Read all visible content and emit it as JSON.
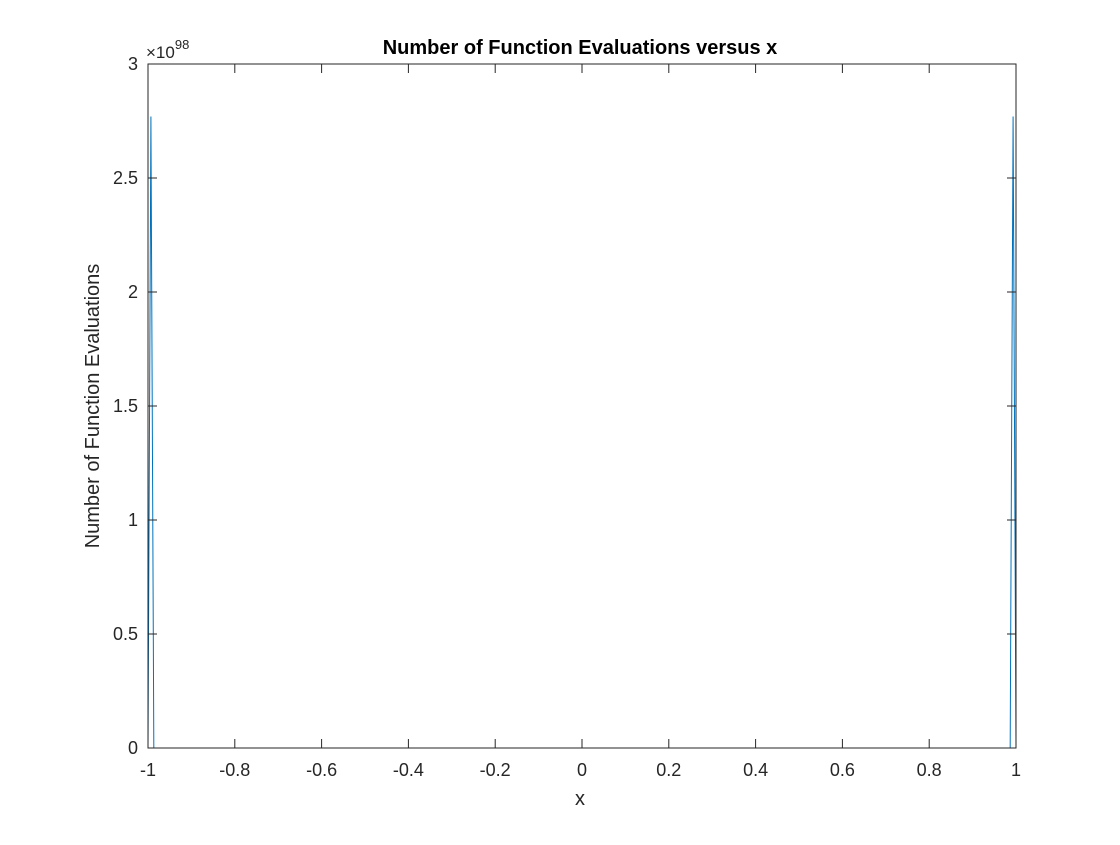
{
  "chart_data": {
    "type": "line",
    "title": "Number of Function Evaluations versus x",
    "xlabel": "x",
    "ylabel": "Number of Function Evaluations",
    "xlim": [
      -1,
      1
    ],
    "ylim": [
      0,
      3e+98
    ],
    "y_exponent_label": "×10",
    "y_exponent_power": "98",
    "x_ticks": [
      -1,
      -0.8,
      -0.6,
      -0.4,
      -0.2,
      0,
      0.2,
      0.4,
      0.6,
      0.8,
      1
    ],
    "x_tick_labels": [
      "-1",
      "-0.8",
      "-0.6",
      "-0.4",
      "-0.2",
      "0",
      "0.2",
      "0.4",
      "0.6",
      "0.8",
      "1"
    ],
    "y_ticks": [
      0,
      5e+97,
      1e+98,
      1.5e+98,
      2e+98,
      2.5e+98,
      3e+98
    ],
    "y_tick_labels": [
      "0",
      "0.5",
      "1",
      "1.5",
      "2",
      "2.5",
      "3"
    ],
    "grid": false,
    "series": [
      {
        "color": "#0072BD",
        "x": [
          -1,
          -0.9933,
          -0.9866,
          -0.9799,
          0,
          0.9799,
          0.9866,
          0.9933,
          1
        ],
        "y": [
          0,
          2.77e+98,
          0,
          0,
          0,
          0,
          0,
          2.77e+98,
          0
        ]
      }
    ]
  }
}
